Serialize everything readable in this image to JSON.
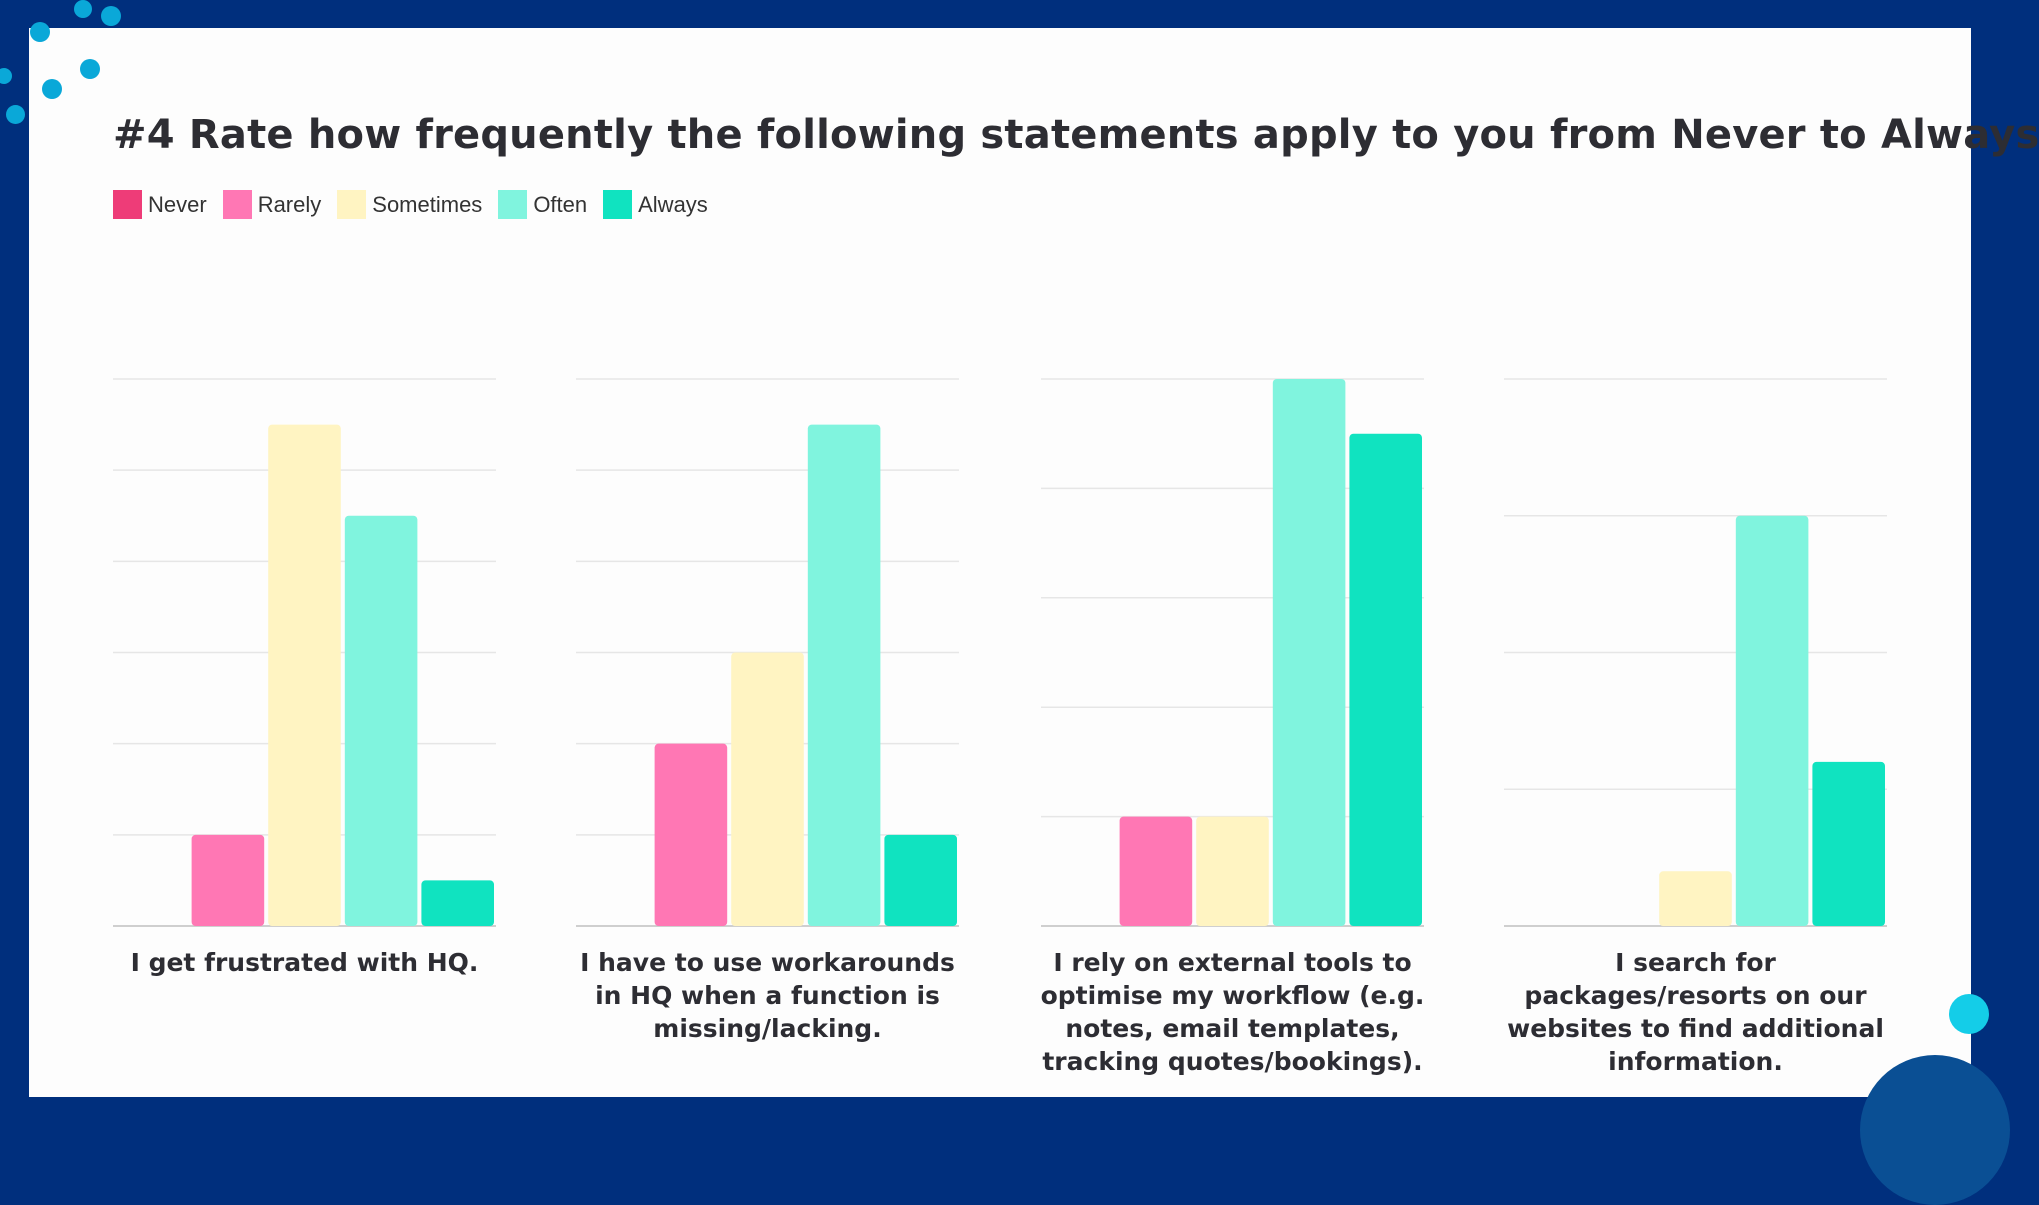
{
  "title": "#4 Rate how frequently the following statements apply to you from Never to Always",
  "colors": {
    "frame": "#002f7d",
    "accent": "#0aa8d8"
  },
  "chart_data": [
    {
      "type": "bar",
      "categories": [
        "Never",
        "Rarely",
        "Sometimes",
        "Often",
        "Always"
      ],
      "values": [
        0,
        2,
        11,
        9,
        1
      ],
      "xlabel": "I get frustrated with HQ.",
      "ylim": [
        0,
        12
      ],
      "grid": true
    },
    {
      "type": "bar",
      "categories": [
        "Never",
        "Rarely",
        "Sometimes",
        "Often",
        "Always"
      ],
      "values": [
        0,
        4,
        6,
        11,
        2
      ],
      "xlabel": "I have to use workarounds in HQ when a function is missing/lacking.",
      "ylim": [
        0,
        12
      ],
      "grid": true
    },
    {
      "type": "bar",
      "categories": [
        "Never",
        "Rarely",
        "Sometimes",
        "Often",
        "Always"
      ],
      "values": [
        0,
        2,
        2,
        10,
        9
      ],
      "xlabel": "I rely on external tools to optimise my workflow (e.g. notes, email templates, tracking quotes/bookings).",
      "ylim": [
        0,
        10
      ],
      "grid": true
    },
    {
      "type": "bar",
      "categories": [
        "Never",
        "Rarely",
        "Sometimes",
        "Often",
        "Always"
      ],
      "values": [
        0,
        0,
        2,
        15,
        6
      ],
      "xlabel": "I search for packages/resorts on our websites to find additional information.",
      "ylim": [
        0,
        20
      ],
      "grid": true
    }
  ],
  "legend": {
    "placement": "top-left",
    "items": [
      {
        "label": "Never",
        "color": "#ee3c78"
      },
      {
        "label": "Rarely",
        "color": "#ff77b4"
      },
      {
        "label": "Sometimes",
        "color": "#fff4c2"
      },
      {
        "label": "Often",
        "color": "#80f4de"
      },
      {
        "label": "Always",
        "color": "#10e3c0"
      }
    ]
  },
  "chart_labels": [
    "I get frustrated with HQ.",
    "I have to use workarounds in HQ when a function is missing/lacking.",
    "I rely on external tools to optimise my workflow (e.g. notes, email templates, tracking quotes/bookings).",
    "I search for packages/resorts on our websites to find additional information."
  ]
}
